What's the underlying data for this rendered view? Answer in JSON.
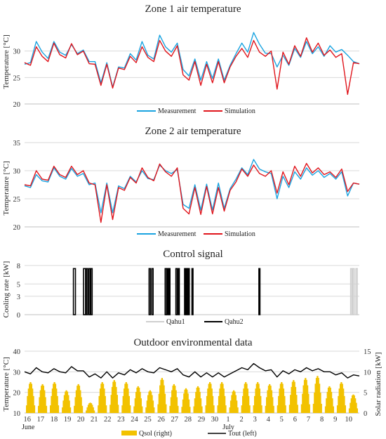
{
  "chart_data": [
    {
      "type": "line",
      "title": "Zone 1 air temperature",
      "ylabel": "Temperature [°C]",
      "ylim": [
        20,
        35
      ],
      "yticks": [
        20,
        25,
        30
      ],
      "grid": true,
      "legend_position": "bottom",
      "series": [
        {
          "name": "Measurement",
          "color": "#1aa3e0",
          "values": [
            27.5,
            27.8,
            31.8,
            29.8,
            28.6,
            31.8,
            29.8,
            29.2,
            31.2,
            29.5,
            30.2,
            28.0,
            28.0,
            24.0,
            27.8,
            23.2,
            27.0,
            26.8,
            29.5,
            28.3,
            31.8,
            29.2,
            28.5,
            33.0,
            30.8,
            29.8,
            31.5,
            26.5,
            25.3,
            28.5,
            24.5,
            28.0,
            24.8,
            28.5,
            24.5,
            27.3,
            29.5,
            31.5,
            29.8,
            33.5,
            31.3,
            29.6,
            29.5,
            27.0,
            29.2,
            27.3,
            30.5,
            28.8,
            31.8,
            29.5,
            30.8,
            29.0,
            31.0,
            29.8,
            30.3,
            29.2,
            28.0,
            27.6
          ]
        },
        {
          "name": "Simulation",
          "color": "#e0151c",
          "values": [
            27.8,
            27.3,
            30.8,
            29.0,
            28.0,
            31.5,
            29.3,
            28.7,
            31.4,
            29.3,
            30.0,
            27.6,
            27.5,
            23.5,
            27.5,
            23.0,
            26.8,
            26.5,
            29.0,
            27.8,
            30.8,
            28.8,
            28.0,
            32.0,
            30.0,
            29.0,
            31.0,
            25.5,
            24.5,
            28.0,
            23.5,
            27.5,
            24.0,
            28.0,
            24.0,
            27.0,
            29.0,
            30.5,
            28.8,
            32.0,
            29.8,
            29.0,
            30.0,
            22.8,
            29.8,
            27.5,
            31.0,
            29.0,
            32.5,
            29.8,
            31.5,
            29.2,
            30.2,
            28.8,
            29.5,
            21.8,
            27.8,
            27.6
          ]
        }
      ]
    },
    {
      "type": "line",
      "title": "Zone 2 air temperature",
      "ylabel": "Temperature [°C]",
      "ylim": [
        20,
        35
      ],
      "yticks": [
        20,
        25,
        30,
        35
      ],
      "grid": true,
      "legend_position": "bottom",
      "series": [
        {
          "name": "Measurement",
          "color": "#1aa3e0",
          "values": [
            27.3,
            27.0,
            29.3,
            28.2,
            28.0,
            30.5,
            29.0,
            28.5,
            30.4,
            29.0,
            29.5,
            27.5,
            27.8,
            22.5,
            27.8,
            22.5,
            27.3,
            26.8,
            29.0,
            28.0,
            30.0,
            28.6,
            28.4,
            31.0,
            30.0,
            29.5,
            30.2,
            24.0,
            23.3,
            27.5,
            23.0,
            27.6,
            23.0,
            27.8,
            23.3,
            26.8,
            28.5,
            30.5,
            29.3,
            32.0,
            30.3,
            29.8,
            29.5,
            25.0,
            29.0,
            27.0,
            29.8,
            28.5,
            30.5,
            29.2,
            30.0,
            28.8,
            29.5,
            28.5,
            29.8,
            25.5,
            27.8,
            27.6
          ]
        },
        {
          "name": "Simulation",
          "color": "#e0151c",
          "values": [
            27.5,
            27.3,
            30.0,
            28.5,
            28.3,
            30.8,
            29.3,
            28.8,
            30.8,
            29.3,
            30.0,
            27.8,
            27.5,
            20.8,
            27.5,
            21.3,
            27.0,
            26.5,
            28.8,
            27.8,
            30.5,
            28.8,
            28.2,
            31.2,
            29.8,
            29.0,
            30.5,
            23.3,
            22.3,
            27.0,
            22.2,
            27.2,
            22.3,
            27.0,
            22.8,
            26.5,
            28.0,
            30.3,
            29.0,
            31.0,
            29.5,
            29.0,
            30.0,
            26.0,
            29.8,
            27.5,
            30.8,
            29.0,
            31.3,
            29.6,
            30.5,
            29.3,
            29.8,
            28.8,
            30.3,
            26.3,
            27.8,
            27.6
          ]
        }
      ]
    },
    {
      "type": "line",
      "title": "Control signal",
      "ylabel": "Cooling rate [kW]",
      "ylim": [
        0,
        8
      ],
      "yticks": [
        0,
        3,
        5,
        8
      ],
      "ytick_labels": [
        "0",
        "3",
        "5",
        "8"
      ],
      "grid": true,
      "legend_position": "bottom",
      "series": [
        {
          "name": "Qahu1",
          "color": "#cfcfcf",
          "on_intervals": [
            [
              24.35,
              24.45
            ],
            [
              24.52,
              24.62
            ],
            [
              24.75,
              24.85
            ]
          ]
        },
        {
          "name": "Qahu2",
          "color": "#000000",
          "level": 7.5,
          "on_intervals": [
            [
              3.65,
              3.8
            ],
            [
              4.4,
              4.55
            ],
            [
              4.62,
              4.72
            ],
            [
              4.8,
              4.9
            ],
            [
              4.95,
              5.05
            ],
            [
              9.3,
              9.4
            ],
            [
              9.5,
              9.6
            ],
            [
              10.5,
              10.6
            ],
            [
              10.65,
              10.72
            ],
            [
              10.78,
              10.86
            ],
            [
              11.3,
              11.4
            ],
            [
              11.48,
              11.55
            ],
            [
              11.95,
              12.02
            ],
            [
              12.08,
              12.15
            ],
            [
              12.22,
              12.28
            ],
            [
              12.5,
              12.56
            ],
            [
              17.5,
              17.58
            ]
          ]
        }
      ]
    },
    {
      "type": "bar_line",
      "title": "Outdoor environmental data",
      "ylabel": "Temperature [°C]",
      "ylabel_right": "Solar radiation [kW]",
      "ylim": [
        10,
        40
      ],
      "yticks": [
        10,
        20,
        30,
        40
      ],
      "ylim_right": [
        0,
        15
      ],
      "yticks_right": [
        0,
        5,
        10,
        15
      ],
      "grid": true,
      "legend_position": "bottom",
      "x_start_day": "16 June",
      "series": [
        {
          "name": "Qsol (right)",
          "color": "#f2c200",
          "type": "bar",
          "daily_peak": [
            7.5,
            7.0,
            7.5,
            5.5,
            7.0,
            2.5,
            7.5,
            8.0,
            7.5,
            6.5,
            5.5,
            8.5,
            7.0,
            6.0,
            6.5,
            7.5,
            7.5,
            5.5,
            7.5,
            7.5,
            7.0,
            7.5,
            8.0,
            8.5,
            9.0,
            6.5,
            7.5,
            4.5
          ]
        },
        {
          "name": "Tout (left)",
          "color": "#000000",
          "type": "line",
          "values": [
            30.0,
            29.0,
            32.0,
            30.0,
            29.5,
            31.5,
            30.0,
            29.5,
            32.5,
            30.5,
            30.5,
            27.5,
            29.0,
            27.0,
            30.0,
            27.0,
            29.5,
            28.5,
            31.0,
            29.5,
            31.5,
            30.0,
            29.5,
            32.0,
            31.0,
            30.0,
            31.5,
            28.5,
            27.5,
            30.0,
            27.5,
            29.5,
            27.5,
            29.5,
            27.5,
            29.0,
            30.5,
            32.0,
            31.0,
            34.0,
            32.0,
            30.5,
            31.0,
            27.5,
            30.5,
            29.0,
            31.0,
            30.0,
            32.0,
            30.5,
            31.5,
            30.0,
            30.0,
            28.5,
            29.5,
            27.0,
            28.5,
            28.0
          ]
        }
      ],
      "x_tick_labels": [
        "16",
        "17",
        "18",
        "19",
        "20",
        "21",
        "22",
        "23",
        "24",
        "25",
        "26",
        "27",
        "28",
        "29",
        "30",
        "1",
        "2",
        "3",
        "4",
        "5",
        "6",
        "7",
        "8",
        "9",
        "10"
      ],
      "month_labels": [
        "June",
        "July"
      ]
    }
  ]
}
